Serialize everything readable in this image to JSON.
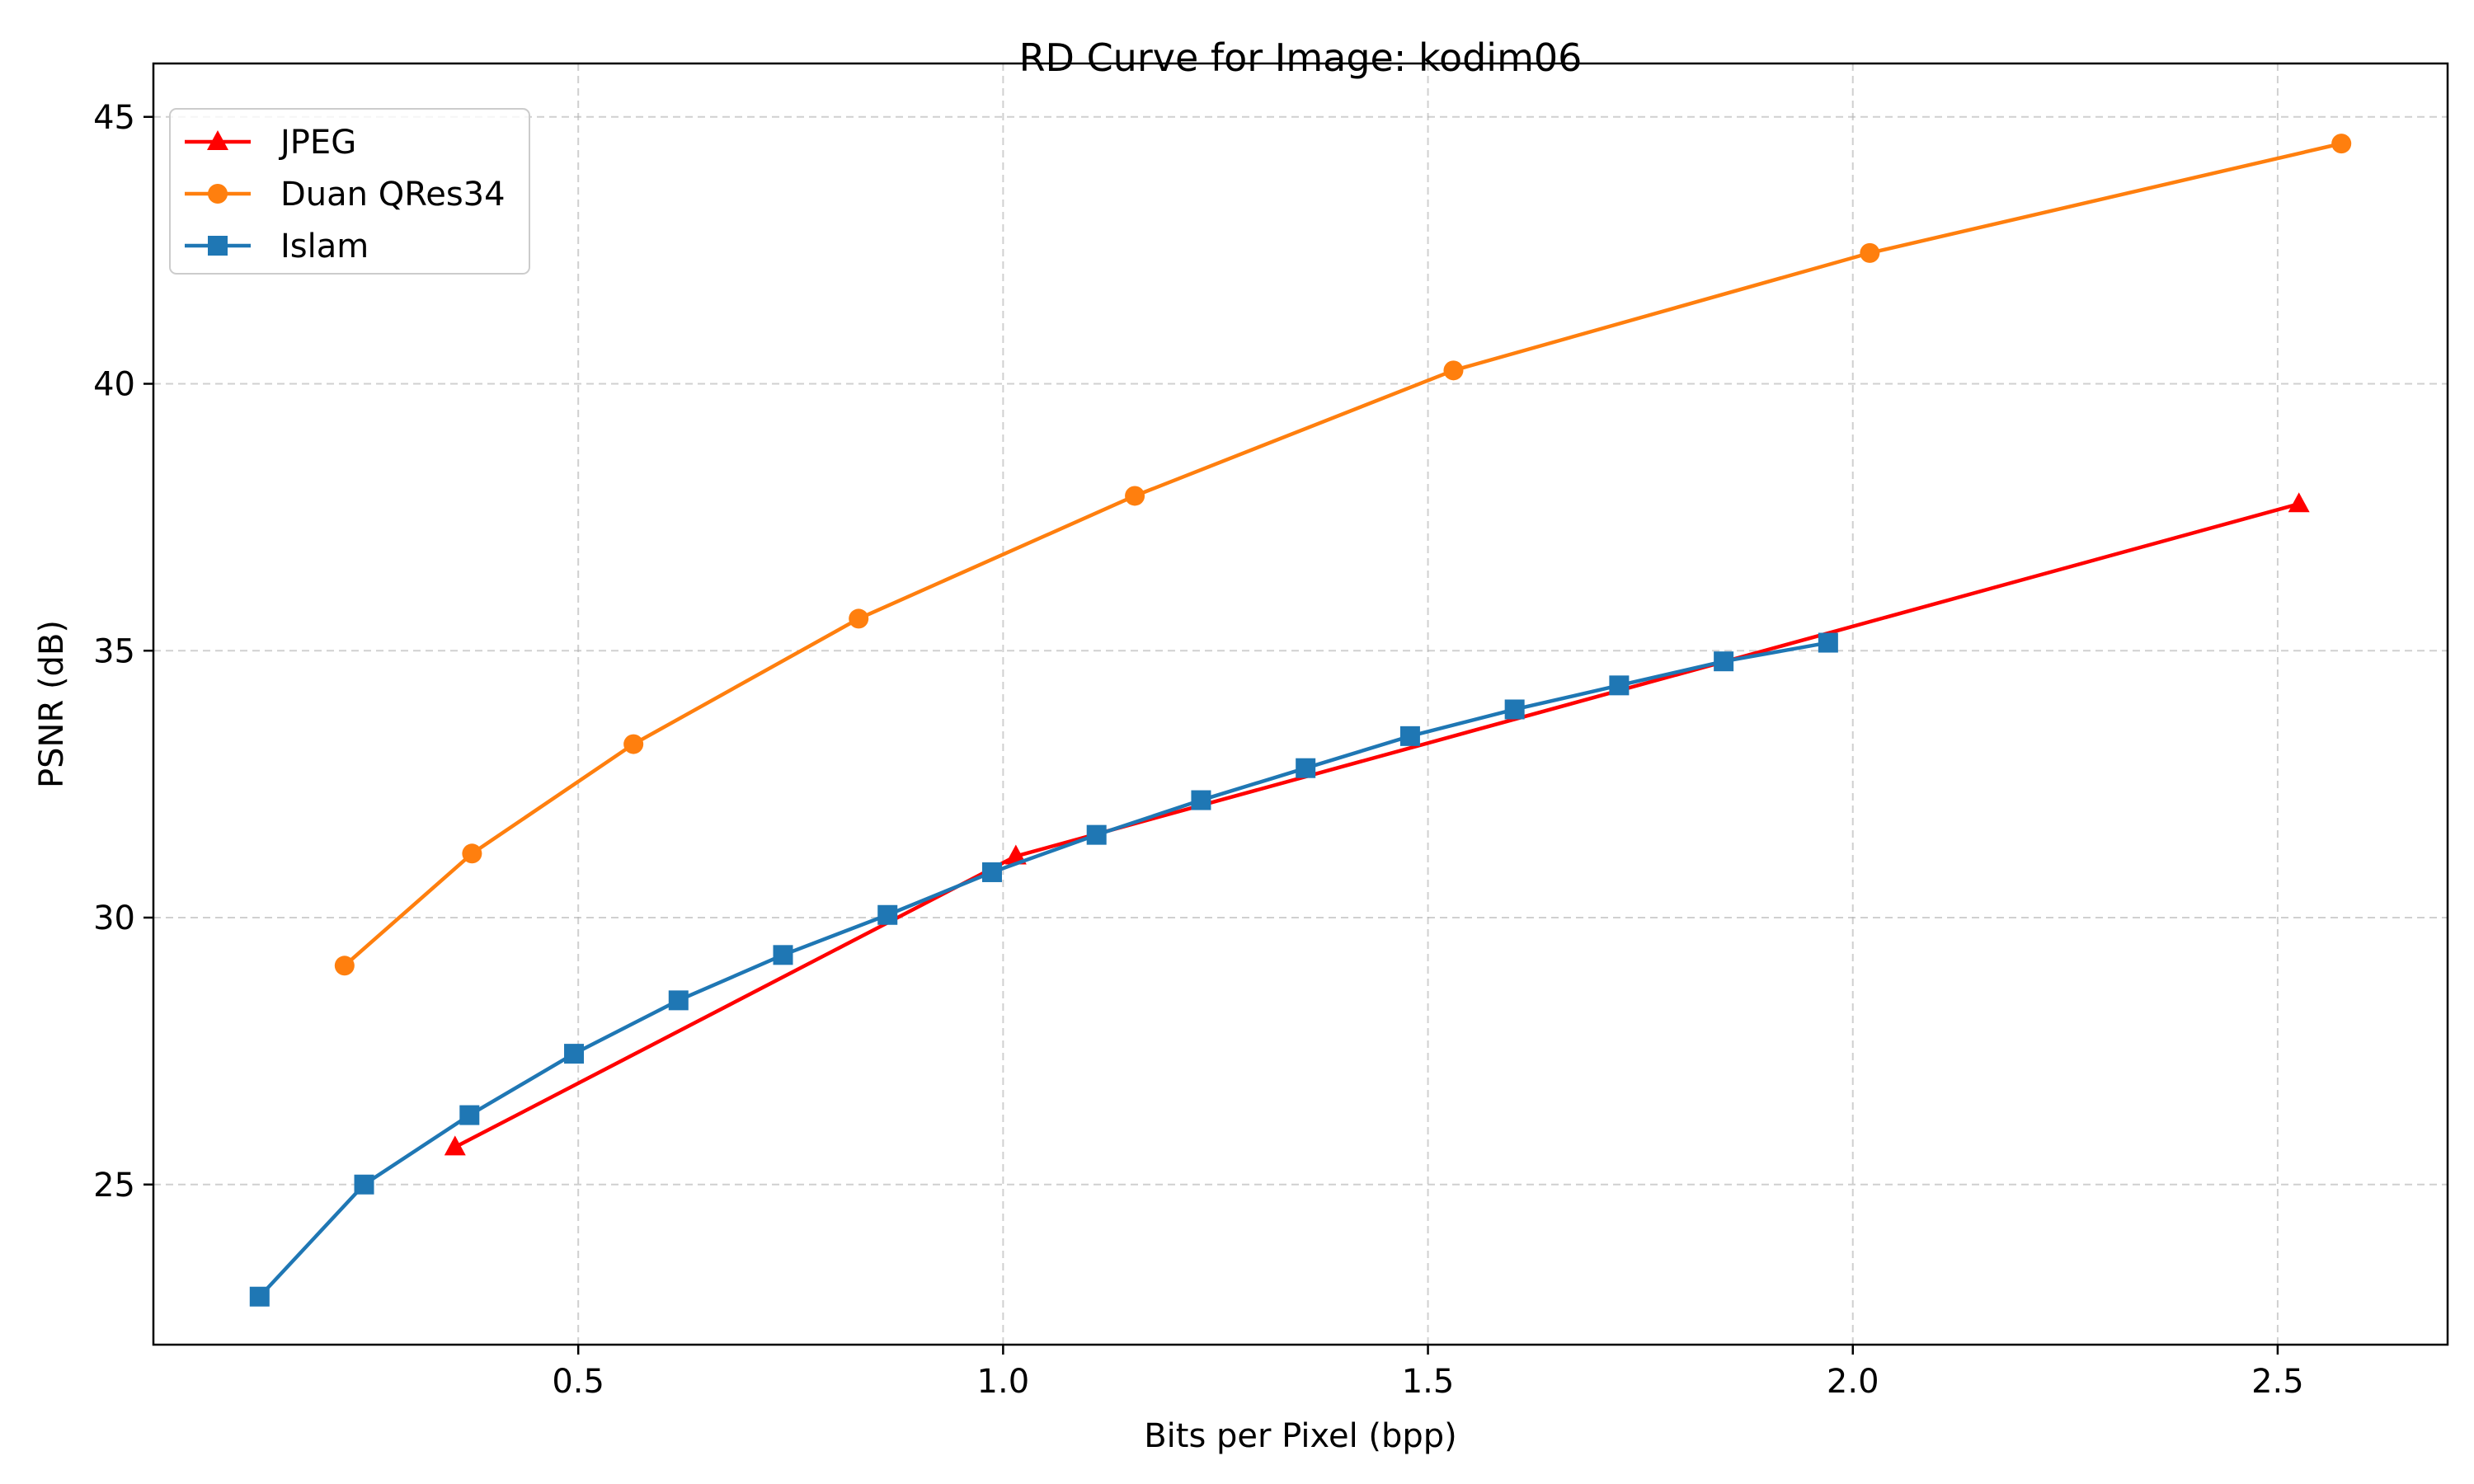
{
  "chart_data": {
    "type": "line",
    "title": "RD Curve for Image: kodim06",
    "xlabel": "Bits per Pixel (bpp)",
    "ylabel": "PSNR (dB)",
    "xlim": [
      0.0,
      2.7
    ],
    "ylim": [
      22,
      46
    ],
    "xticks": [
      0.5,
      1.0,
      1.5,
      2.0,
      2.5
    ],
    "xtick_labels": [
      "0.5",
      "1.0",
      "1.5",
      "2.0",
      "2.5"
    ],
    "yticks": [
      25,
      30,
      35,
      40,
      45
    ],
    "ytick_labels": [
      "25",
      "30",
      "35",
      "40",
      "45"
    ],
    "grid": true,
    "legend_position": "top-left",
    "series": [
      {
        "name": "JPEG",
        "color": "#ff0000",
        "marker": "triangle",
        "x": [
          0.355,
          1.015,
          2.525
        ],
        "y": [
          25.7,
          31.15,
          37.75
        ]
      },
      {
        "name": "Duan QRes34",
        "color": "#ff7f0e",
        "marker": "circle",
        "x": [
          0.225,
          0.375,
          0.565,
          0.83,
          1.155,
          1.53,
          2.02,
          2.575
        ],
        "y": [
          29.1,
          31.2,
          33.25,
          35.6,
          37.9,
          40.25,
          42.45,
          44.5
        ]
      },
      {
        "name": "Islam",
        "color": "#1f77b4",
        "marker": "square",
        "x": [
          0.125,
          0.248,
          0.372,
          0.495,
          0.618,
          0.741,
          0.864,
          0.987,
          1.11,
          1.233,
          1.356,
          1.479,
          1.602,
          1.725,
          1.848,
          1.971
        ],
        "y": [
          22.9,
          25.0,
          26.3,
          27.45,
          28.45,
          29.3,
          30.05,
          30.85,
          31.55,
          32.2,
          32.8,
          33.4,
          33.9,
          34.35,
          34.8,
          35.15
        ]
      }
    ]
  }
}
